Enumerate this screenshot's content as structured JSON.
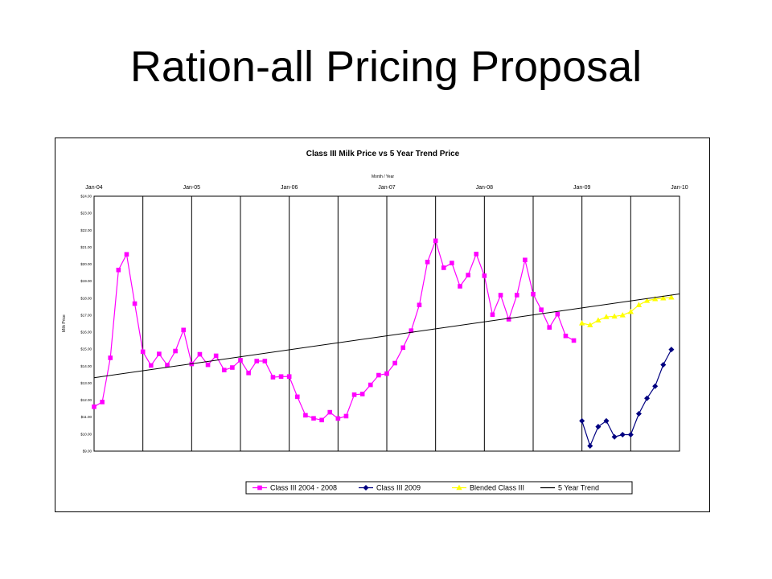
{
  "slide": {
    "title": "Ration-all Pricing Proposal"
  },
  "colors": {
    "class3_0408": "#ff00ff",
    "class3_2009": "#000080",
    "blended": "#ffff00",
    "trend": "#000000",
    "grid": "#000000"
  },
  "chart_data": {
    "type": "line",
    "title": "Class III Milk Price vs 5 Year Trend Price",
    "xlabel": "Month / Year",
    "ylabel": "Milk Price",
    "x_tick_labels": [
      "Jan-04",
      "Jan-05",
      "Jan-06",
      "Jan-07",
      "Jan-08",
      "Jan-09",
      "Jan-10"
    ],
    "y_tick_labels": [
      "$9.00",
      "$10.00",
      "$11.00",
      "$12.00",
      "$13.00",
      "$14.00",
      "$15.00",
      "$16.00",
      "$17.00",
      "$18.00",
      "$19.00",
      "$20.00",
      "$21.00",
      "$22.00",
      "$23.00",
      "$24.00"
    ],
    "ylim": [
      9,
      24
    ],
    "x_axis_position": "top",
    "grid": true,
    "legend_position": "bottom",
    "series": [
      {
        "name": "Class III 2004 - 2008",
        "color": "#ff00ff",
        "marker": "square",
        "start_index": 0,
        "values": [
          11.61,
          11.89,
          14.49,
          19.66,
          20.58,
          17.68,
          14.85,
          14.04,
          14.72,
          14.06,
          14.89,
          16.13,
          14.13,
          14.7,
          14.08,
          14.61,
          13.77,
          13.92,
          14.35,
          13.6,
          14.3,
          14.3,
          13.35,
          13.39,
          13.39,
          12.2,
          11.11,
          10.93,
          10.83,
          11.29,
          10.92,
          11.06,
          12.32,
          12.36,
          12.9,
          13.47,
          13.56,
          14.18,
          15.09,
          16.09,
          17.6,
          20.13,
          21.38,
          19.79,
          20.07,
          18.7,
          19.36,
          20.6,
          19.32,
          17.03,
          18.18,
          16.76,
          18.18,
          20.25,
          18.24,
          17.32,
          16.28,
          17.06,
          15.78,
          15.51
        ]
      },
      {
        "name": "Class III 2009",
        "color": "#000080",
        "marker": "diamond",
        "start_index": 60,
        "values": [
          10.78,
          9.31,
          10.44,
          10.78,
          9.84,
          9.97,
          9.97,
          11.2,
          12.11,
          12.82,
          14.08,
          14.98
        ]
      },
      {
        "name": "Blended Class III",
        "color": "#ffff00",
        "marker": "triangle",
        "start_index": 60,
        "values": [
          16.53,
          16.42,
          16.7,
          16.9,
          16.93,
          17.0,
          17.2,
          17.6,
          17.85,
          17.95,
          18.0,
          18.05
        ]
      },
      {
        "name": "5 Year Trend",
        "color": "#000000",
        "marker": "none",
        "type": "trend",
        "x": [
          0,
          72
        ],
        "values": [
          13.32,
          18.25
        ]
      }
    ]
  }
}
